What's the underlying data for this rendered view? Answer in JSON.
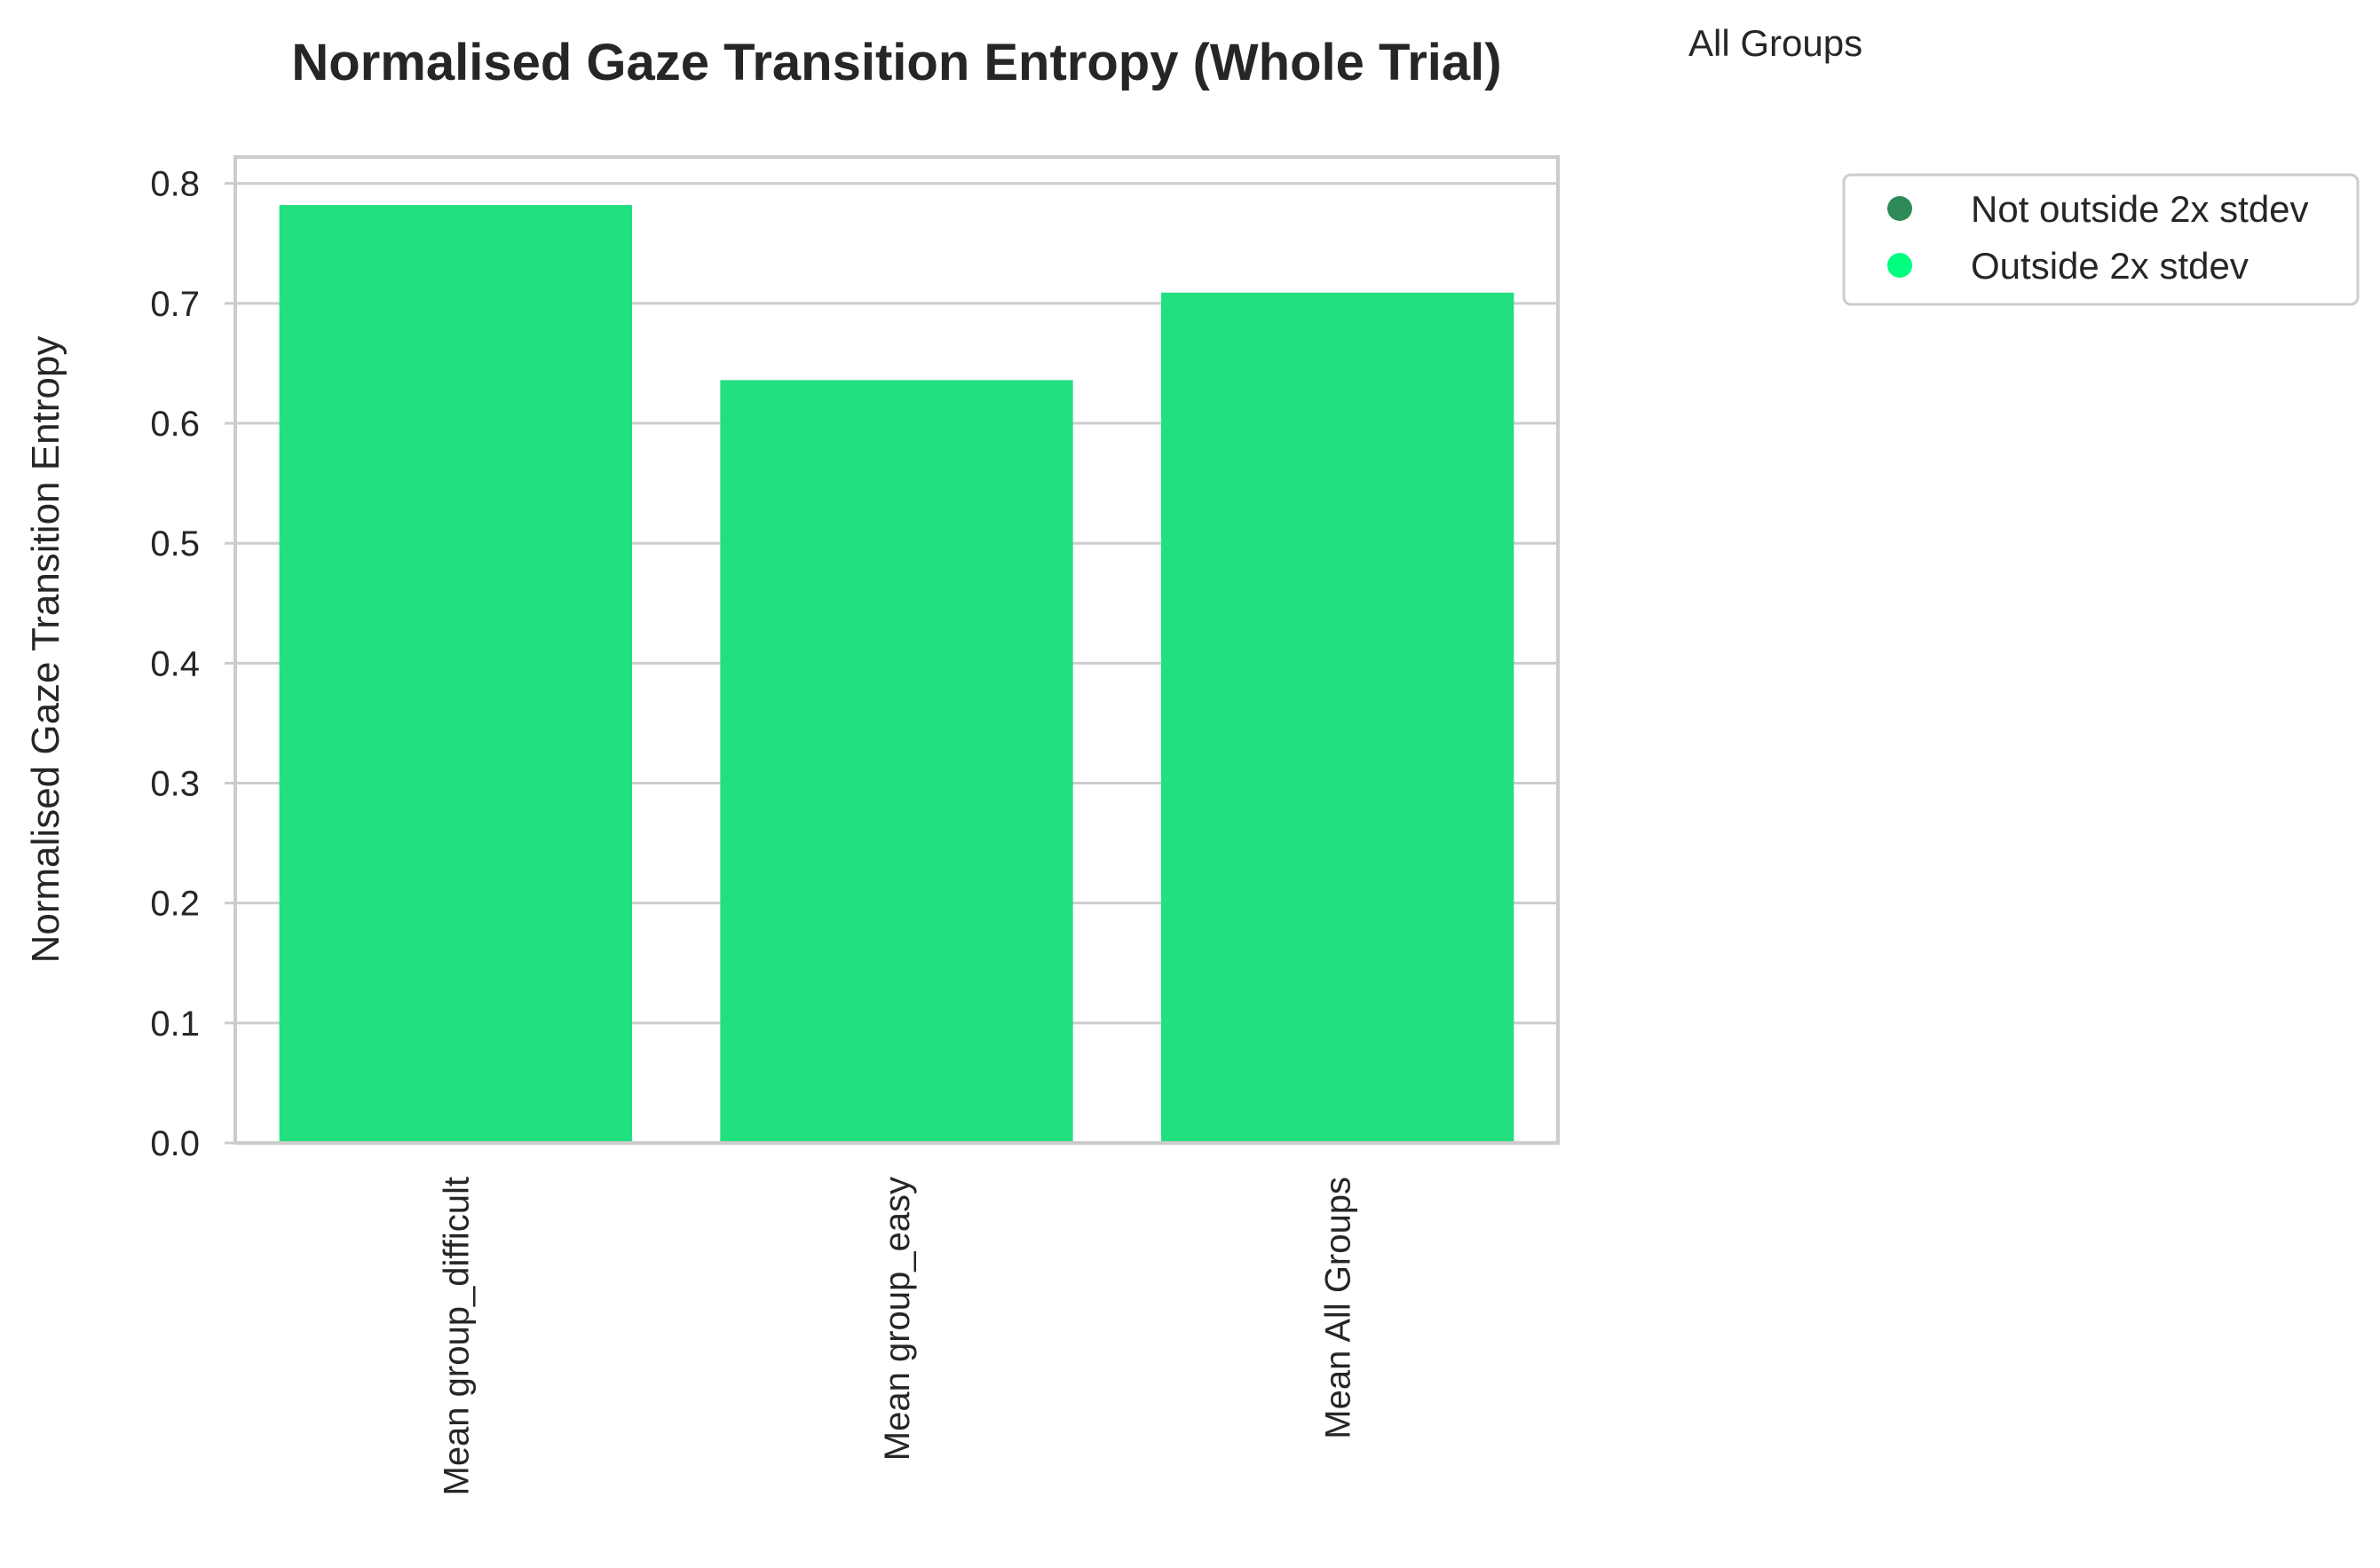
{
  "chart_data": {
    "type": "bar",
    "title": "Normalised Gaze Transition Entropy (Whole Trial)",
    "subtitle": "All Groups",
    "xlabel": "",
    "ylabel": "Normalised Gaze Transition Entropy",
    "categories": [
      "Mean group_difficult",
      "Mean group_easy",
      "Mean All Groups"
    ],
    "values": [
      0.782,
      0.636,
      0.709
    ],
    "ylim": [
      0,
      0.822
    ],
    "yticks": [
      "0.0",
      "0.1",
      "0.2",
      "0.3",
      "0.4",
      "0.5",
      "0.6",
      "0.7",
      "0.8"
    ],
    "grid": "horizontal",
    "bar_color": "#22e07f",
    "legend": {
      "placement": "upper-right-outside",
      "entries": [
        {
          "label": "Not outside 2x stdev",
          "color": "#2e8b57"
        },
        {
          "label": "Outside 2x stdev",
          "color": "#00ff7f"
        }
      ]
    }
  }
}
